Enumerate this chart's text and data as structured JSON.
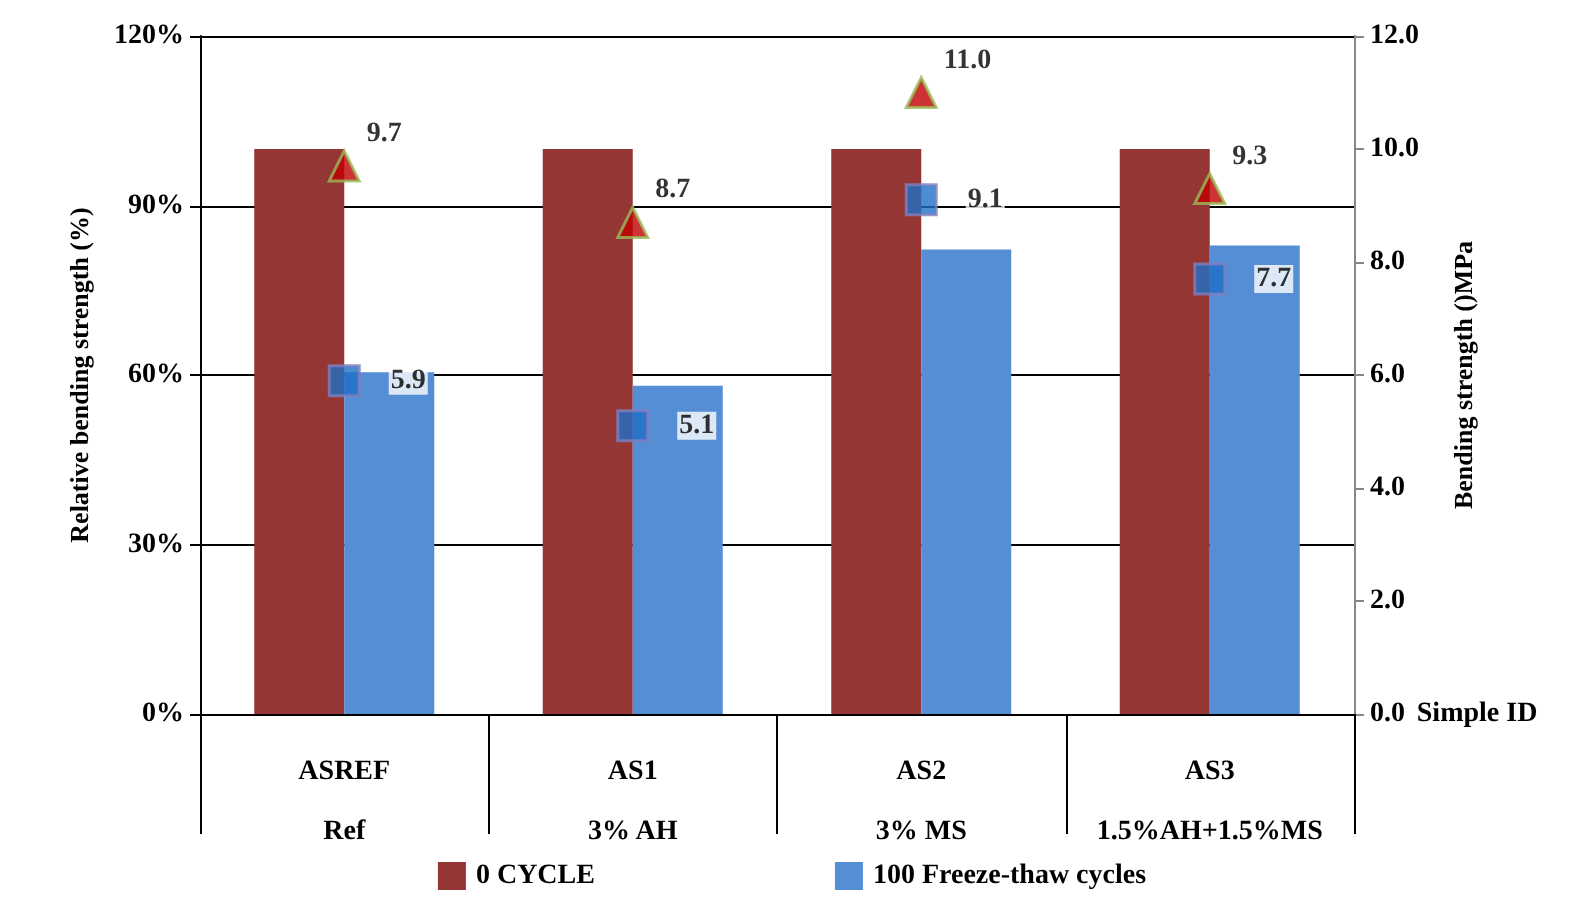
{
  "chart_data": {
    "type": "bar",
    "xlabel": "Simple ID",
    "ylabel": "Relative bending strength (%)",
    "y2label": "Bending strength ()MPa",
    "categories": [
      "ASREF\nRef",
      "AS1\n3% AH",
      "AS2\n3% MS",
      "AS3\n1.5%AH+1.5%MS"
    ],
    "series": [
      {
        "name": "0 CYCLE",
        "color": "#943634",
        "values": [
          100,
          100,
          100,
          100
        ]
      },
      {
        "name": "100 Freeze-thaw cycles",
        "color": "#558ed5",
        "values": [
          60.5,
          58.1,
          82.2,
          82.9
        ]
      },
      {
        "type": "scatter",
        "axis": "y2",
        "marker": "triangle",
        "color": "#c00000",
        "x": [
          "ASREF\nRef",
          "AS1\n3% AH",
          "AS2\n3% MS",
          "AS3\n1.5%AH+1.5%MS"
        ],
        "values": [
          9.7,
          8.7,
          11.0,
          9.3
        ],
        "value_labels": [
          "9.7",
          "8.7",
          "11.0",
          "9.3"
        ]
      },
      {
        "type": "scatter",
        "axis": "y2",
        "marker": "square",
        "color": "#1f6fc5",
        "x": [
          "ASREF\nRef",
          "AS1\n3% AH",
          "AS2\n3% MS",
          "AS3\n1.5%AH+1.5%MS"
        ],
        "values": [
          5.9,
          5.1,
          9.1,
          7.7
        ],
        "value_labels": [
          "5.9",
          "5.1",
          "9.1",
          "7.7"
        ]
      }
    ],
    "ylim": [
      0,
      120
    ],
    "yticks": [
      {
        "value": 0,
        "label": "0%"
      },
      {
        "value": 30,
        "label": "30%"
      },
      {
        "value": 60,
        "label": "60%"
      },
      {
        "value": 90,
        "label": "90%"
      },
      {
        "value": 120,
        "label": "120%"
      }
    ],
    "y2lim": [
      0,
      12
    ],
    "y2ticks": [
      {
        "value": 0,
        "label": "0.0"
      },
      {
        "value": 2,
        "label": "2.0"
      },
      {
        "value": 4,
        "label": "4.0"
      },
      {
        "value": 6,
        "label": "6.0"
      },
      {
        "value": 8,
        "label": "8.0"
      },
      {
        "value": 10,
        "label": "10.0"
      },
      {
        "value": 12,
        "label": "12.0"
      }
    ],
    "grid": "y",
    "legend": "bottom"
  }
}
